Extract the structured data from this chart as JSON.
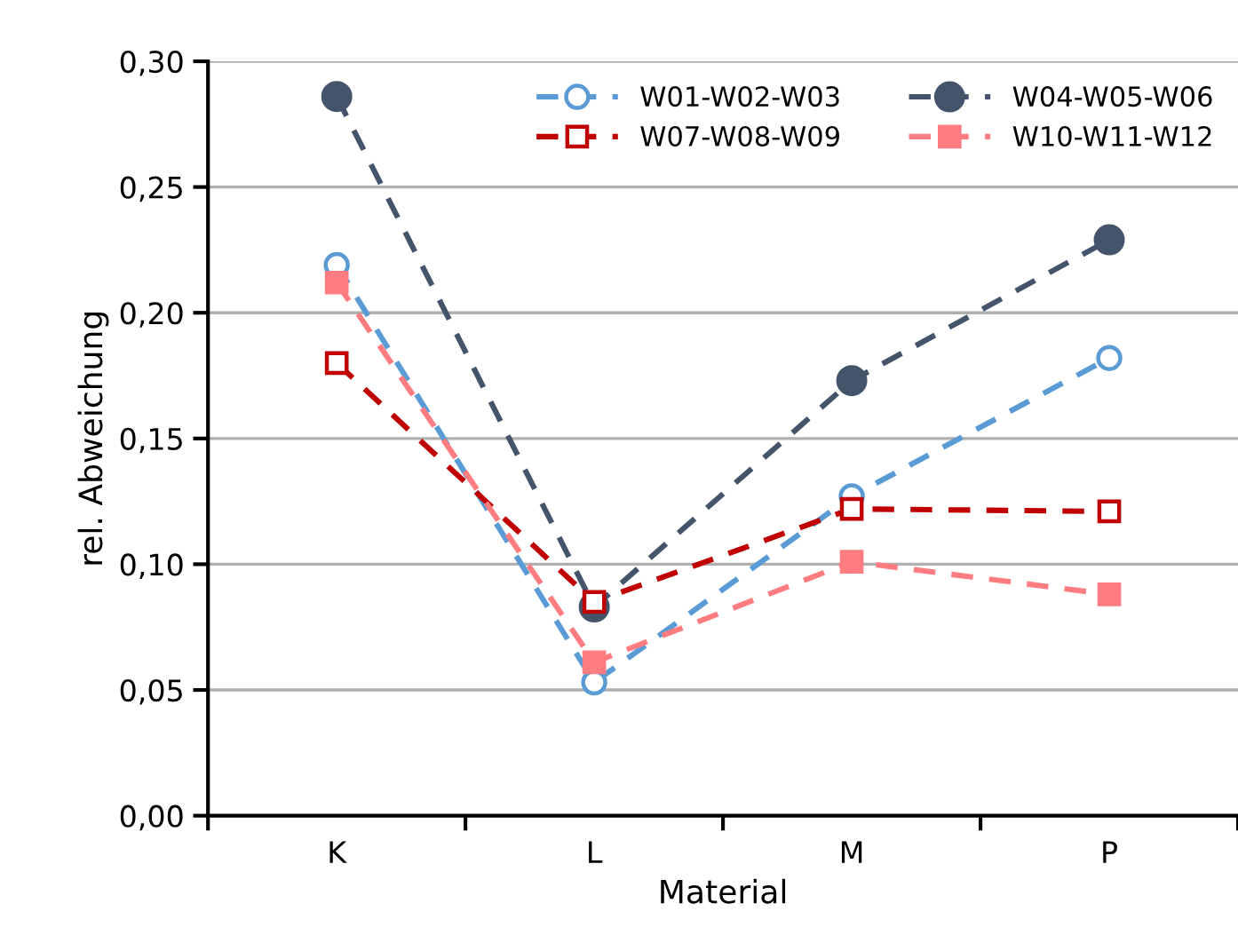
{
  "chart_data": {
    "type": "line",
    "xlabel": "Material",
    "ylabel": "rel. Abweichung",
    "categories": [
      "K",
      "L",
      "M",
      "P"
    ],
    "series": [
      {
        "name": "W01-W02-W03",
        "color": "#5b9bd5",
        "values": [
          0.219,
          0.053,
          0.127,
          0.182
        ]
      },
      {
        "name": "W04-W05-W06",
        "color": "#44546a",
        "values": [
          0.286,
          0.083,
          0.173,
          0.229
        ]
      },
      {
        "name": "W07-W08-W09",
        "color": "#c00000",
        "values": [
          0.18,
          0.085,
          0.122,
          0.121
        ],
        "marker": "square"
      },
      {
        "name": "W10-W11-W12",
        "color": "#ff7c80",
        "values": [
          0.212,
          0.061,
          0.101,
          0.088
        ],
        "marker": "square"
      }
    ],
    "marker": "circle",
    "line_style": "dashed",
    "grid": "y",
    "legend": "top right",
    "ylim": [
      0,
      0.3
    ],
    "yticks": [
      {
        "value": 0,
        "label": "0,00"
      },
      {
        "value": 0.05,
        "label": "0,05"
      },
      {
        "value": 0.1,
        "label": "0,10"
      },
      {
        "value": 0.15,
        "label": "0,15"
      },
      {
        "value": 0.2,
        "label": "0,20"
      },
      {
        "value": 0.25,
        "label": "0,25"
      },
      {
        "value": 0.3,
        "label": "0,30"
      }
    ]
  }
}
